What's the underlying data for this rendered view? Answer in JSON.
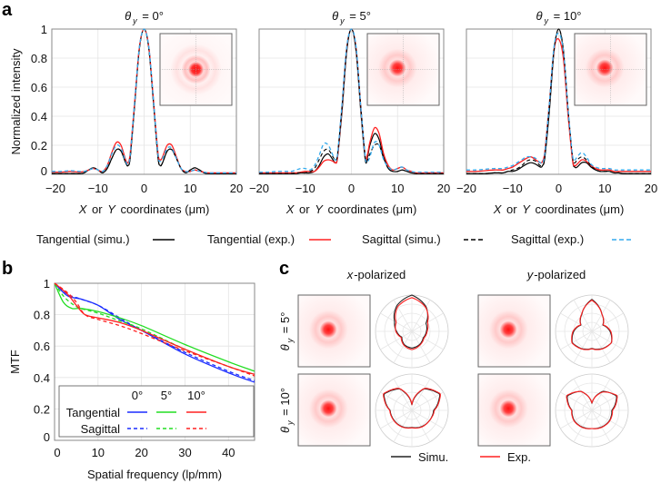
{
  "panel_labels": {
    "a": "a",
    "b": "b",
    "c": "c"
  },
  "chart_data": [
    {
      "type": "line",
      "panel": "a",
      "ylabel": "Normalized intensity",
      "xlabel_parts": [
        "X",
        " or ",
        "Y",
        " coordinates (μm)"
      ],
      "xlim": [
        -20,
        20
      ],
      "ylim": [
        0,
        1
      ],
      "xticks": [
        "−20",
        "−10",
        "0",
        "10",
        "20"
      ],
      "yticks": [
        "0",
        "0.2",
        "0.4",
        "0.6",
        "0.8",
        "1"
      ],
      "legend": [
        {
          "label": "Tangential (simu.)",
          "color": "#000000",
          "dash": false
        },
        {
          "label": "Tangential (exp.)",
          "color": "#ff2020",
          "dash": false
        },
        {
          "label": "Sagittal (simu.)",
          "color": "#000000",
          "dash": true
        },
        {
          "label": "Sagittal (exp.)",
          "color": "#33aaee",
          "dash": true
        }
      ],
      "x": [
        -20,
        -18,
        -16,
        -14,
        -13,
        -12,
        -11,
        -10,
        -9,
        -8,
        -7,
        -6,
        -5,
        -4,
        -3.5,
        -3,
        -2,
        -1,
        0,
        1,
        2,
        3,
        3.5,
        4,
        5,
        6,
        7,
        8,
        9,
        10,
        11,
        12,
        13,
        14,
        16,
        18,
        20
      ],
      "subplots": [
        {
          "title_sym": "θ",
          "title_sub": "y",
          "title_val": " = 0°",
          "series": [
            {
              "name": "Tangential (simu.)",
              "values": [
                0.005,
                0.005,
                0.005,
                0.005,
                0.01,
                0.03,
                0.045,
                0.03,
                0.01,
                0.04,
                0.11,
                0.17,
                0.16,
                0.08,
                0.06,
                0.12,
                0.5,
                0.87,
                1,
                0.87,
                0.5,
                0.12,
                0.06,
                0.08,
                0.16,
                0.17,
                0.11,
                0.04,
                0.01,
                0.03,
                0.045,
                0.03,
                0.01,
                0.005,
                0.005,
                0.005,
                0.005
              ]
            },
            {
              "name": "Tangential (exp.)",
              "values": [
                0.015,
                0.015,
                0.02,
                0.015,
                0.02,
                0.03,
                0.04,
                0.03,
                0.02,
                0.06,
                0.15,
                0.22,
                0.2,
                0.1,
                0.08,
                0.15,
                0.52,
                0.88,
                1,
                0.88,
                0.52,
                0.15,
                0.1,
                0.12,
                0.2,
                0.2,
                0.12,
                0.04,
                0.02,
                0.02,
                0.03,
                0.02,
                0.015,
                0.01,
                0.01,
                0.01,
                0.01
              ]
            },
            {
              "name": "Sagittal (simu.)",
              "values": [
                0.005,
                0.005,
                0.005,
                0.005,
                0.01,
                0.03,
                0.045,
                0.03,
                0.01,
                0.04,
                0.11,
                0.17,
                0.16,
                0.08,
                0.06,
                0.12,
                0.5,
                0.87,
                1,
                0.87,
                0.5,
                0.12,
                0.06,
                0.08,
                0.16,
                0.17,
                0.11,
                0.04,
                0.01,
                0.03,
                0.045,
                0.03,
                0.01,
                0.005,
                0.005,
                0.005,
                0.005
              ]
            },
            {
              "name": "Sagittal (exp.)",
              "values": [
                0.02,
                0.02,
                0.025,
                0.02,
                0.02,
                0.03,
                0.04,
                0.03,
                0.02,
                0.06,
                0.14,
                0.2,
                0.18,
                0.09,
                0.07,
                0.14,
                0.52,
                0.88,
                1,
                0.88,
                0.52,
                0.14,
                0.09,
                0.11,
                0.18,
                0.18,
                0.11,
                0.04,
                0.02,
                0.02,
                0.03,
                0.02,
                0.015,
                0.01,
                0.01,
                0.01,
                0.01
              ]
            }
          ]
        },
        {
          "title_sym": "θ",
          "title_sub": "y",
          "title_val": " = 5°",
          "series": [
            {
              "name": "Tangential (simu.)",
              "values": [
                0.005,
                0.005,
                0.005,
                0.005,
                0.005,
                0.005,
                0.01,
                0.01,
                0.01,
                0.02,
                0.06,
                0.12,
                0.14,
                0.1,
                0.08,
                0.12,
                0.45,
                0.85,
                1,
                0.85,
                0.45,
                0.1,
                0.12,
                0.2,
                0.28,
                0.24,
                0.12,
                0.04,
                0.02,
                0.02,
                0.03,
                0.02,
                0.01,
                0.005,
                0.005,
                0.005,
                0.005
              ]
            },
            {
              "name": "Tangential (exp.)",
              "values": [
                0.01,
                0.01,
                0.01,
                0.01,
                0.01,
                0.01,
                0.015,
                0.02,
                0.02,
                0.02,
                0.05,
                0.09,
                0.1,
                0.09,
                0.08,
                0.12,
                0.48,
                0.87,
                1,
                0.87,
                0.48,
                0.12,
                0.14,
                0.22,
                0.32,
                0.28,
                0.14,
                0.06,
                0.03,
                0.04,
                0.05,
                0.03,
                0.02,
                0.01,
                0.01,
                0.01,
                0.01
              ]
            },
            {
              "name": "Sagittal (simu.)",
              "values": [
                0.005,
                0.005,
                0.005,
                0.005,
                0.005,
                0.01,
                0.01,
                0.01,
                0.02,
                0.04,
                0.1,
                0.16,
                0.17,
                0.12,
                0.1,
                0.14,
                0.48,
                0.86,
                1,
                0.86,
                0.48,
                0.12,
                0.1,
                0.14,
                0.2,
                0.2,
                0.11,
                0.04,
                0.02,
                0.02,
                0.03,
                0.02,
                0.01,
                0.005,
                0.005,
                0.005,
                0.005
              ]
            },
            {
              "name": "Sagittal (exp.)",
              "values": [
                0.015,
                0.015,
                0.02,
                0.02,
                0.02,
                0.03,
                0.04,
                0.04,
                0.03,
                0.06,
                0.13,
                0.21,
                0.2,
                0.13,
                0.1,
                0.14,
                0.5,
                0.88,
                1,
                0.88,
                0.48,
                0.12,
                0.09,
                0.12,
                0.22,
                0.2,
                0.1,
                0.05,
                0.03,
                0.04,
                0.05,
                0.03,
                0.02,
                0.015,
                0.015,
                0.015,
                0.015
              ]
            }
          ]
        },
        {
          "title_sym": "θ",
          "title_sub": "y",
          "title_val": " = 10°",
          "series": [
            {
              "name": "Tangential (simu.)",
              "values": [
                0.005,
                0.005,
                0.005,
                0.01,
                0.01,
                0.01,
                0.02,
                0.02,
                0.03,
                0.05,
                0.07,
                0.08,
                0.07,
                0.05,
                0.06,
                0.12,
                0.45,
                0.85,
                1,
                0.85,
                0.45,
                0.1,
                0.05,
                0.05,
                0.08,
                0.08,
                0.05,
                0.03,
                0.02,
                0.02,
                0.02,
                0.01,
                0.01,
                0.005,
                0.005,
                0.005,
                0.005
              ]
            },
            {
              "name": "Tangential (exp.)",
              "values": [
                0.02,
                0.02,
                0.025,
                0.03,
                0.03,
                0.03,
                0.04,
                0.05,
                0.07,
                0.09,
                0.11,
                0.12,
                0.1,
                0.08,
                0.09,
                0.16,
                0.5,
                0.86,
                0.93,
                0.8,
                0.42,
                0.1,
                0.06,
                0.07,
                0.1,
                0.09,
                0.06,
                0.04,
                0.03,
                0.03,
                0.03,
                0.02,
                0.02,
                0.02,
                0.02,
                0.02,
                0.02
              ]
            },
            {
              "name": "Sagittal (simu.)",
              "values": [
                0.005,
                0.005,
                0.005,
                0.01,
                0.01,
                0.01,
                0.02,
                0.03,
                0.04,
                0.06,
                0.09,
                0.1,
                0.09,
                0.06,
                0.06,
                0.12,
                0.48,
                0.86,
                1,
                0.86,
                0.46,
                0.12,
                0.08,
                0.1,
                0.12,
                0.1,
                0.06,
                0.03,
                0.02,
                0.02,
                0.02,
                0.01,
                0.01,
                0.005,
                0.005,
                0.005,
                0.005
              ]
            },
            {
              "name": "Sagittal (exp.)",
              "values": [
                0.03,
                0.03,
                0.035,
                0.04,
                0.04,
                0.04,
                0.05,
                0.06,
                0.08,
                0.1,
                0.12,
                0.12,
                0.11,
                0.08,
                0.08,
                0.15,
                0.5,
                0.88,
                0.97,
                0.85,
                0.46,
                0.13,
                0.1,
                0.12,
                0.15,
                0.12,
                0.07,
                0.05,
                0.04,
                0.04,
                0.04,
                0.03,
                0.03,
                0.03,
                0.03,
                0.03,
                0.03
              ]
            }
          ]
        }
      ]
    },
    {
      "type": "line",
      "panel": "b",
      "xlabel": "Spatial frequency (lp/mm)",
      "ylabel": "MTF",
      "xlim": [
        0,
        46
      ],
      "ylim": [
        0,
        1
      ],
      "xticks": [
        "0",
        "10",
        "20",
        "30",
        "40"
      ],
      "yticks": [
        "0",
        "0.2",
        "0.4",
        "0.6",
        "0.8",
        "1"
      ],
      "legend_placement": "bottom-left",
      "legend_headers": [
        "0°",
        "5°",
        "10°"
      ],
      "legend_rows": [
        "Tangential",
        "Sagittal"
      ],
      "series": [
        {
          "name": "Tangential 0°",
          "color": "#1a2cff",
          "dash": false,
          "x": [
            0,
            3,
            6,
            10,
            15,
            20,
            30,
            40,
            46
          ],
          "values": [
            1,
            0.92,
            0.9,
            0.86,
            0.77,
            0.7,
            0.55,
            0.43,
            0.37
          ]
        },
        {
          "name": "Sagittal 0°",
          "color": "#1a2cff",
          "dash": true,
          "x": [
            0,
            3,
            6,
            10,
            15,
            20,
            30,
            40,
            46
          ],
          "values": [
            1,
            0.93,
            0.9,
            0.86,
            0.78,
            0.7,
            0.56,
            0.44,
            0.38
          ]
        },
        {
          "name": "Tangential 5°",
          "color": "#22dd22",
          "dash": false,
          "x": [
            0,
            2,
            4,
            6,
            10,
            15,
            20,
            30,
            40,
            46
          ],
          "values": [
            1,
            0.88,
            0.84,
            0.84,
            0.82,
            0.78,
            0.73,
            0.61,
            0.5,
            0.44
          ]
        },
        {
          "name": "Sagittal 5°",
          "color": "#22dd22",
          "dash": true,
          "x": [
            0,
            2,
            4,
            6,
            10,
            15,
            20,
            30,
            40,
            46
          ],
          "values": [
            1,
            0.92,
            0.87,
            0.84,
            0.81,
            0.76,
            0.71,
            0.58,
            0.47,
            0.42
          ]
        },
        {
          "name": "Tangential 10°",
          "color": "#ff2020",
          "dash": false,
          "x": [
            0,
            3,
            5,
            7,
            10,
            15,
            20,
            30,
            40,
            46
          ],
          "values": [
            1,
            0.93,
            0.86,
            0.8,
            0.78,
            0.75,
            0.7,
            0.58,
            0.47,
            0.42
          ]
        },
        {
          "name": "Sagittal 10°",
          "color": "#ff2020",
          "dash": true,
          "x": [
            0,
            3,
            5,
            7,
            10,
            15,
            20,
            30,
            40,
            46
          ],
          "values": [
            1,
            0.94,
            0.88,
            0.8,
            0.77,
            0.73,
            0.68,
            0.57,
            0.47,
            0.41
          ]
        }
      ]
    },
    {
      "type": "polar",
      "panel": "c",
      "columns": [
        {
          "prefix": "x",
          "suffix": "-polarized"
        },
        {
          "prefix": "y",
          "suffix": "-polarized"
        }
      ],
      "rows": [
        {
          "sym": "θ",
          "sub": "y",
          "val": " = 5°"
        },
        {
          "sym": "θ",
          "sub": "y",
          "val": " = 10°"
        }
      ],
      "legend": [
        {
          "label": "Simu.",
          "color": "#222222"
        },
        {
          "label": "Exp.",
          "color": "#ff2020"
        }
      ],
      "angles_deg": [
        0,
        30,
        60,
        90,
        120,
        150,
        180,
        210,
        240,
        270,
        300,
        330
      ],
      "plots": [
        {
          "row": 0,
          "col": 0,
          "simu": [
            1.0,
            0.78,
            0.45,
            0.4,
            0.36,
            0.42,
            0.46,
            0.42,
            0.32,
            0.42,
            0.55,
            0.82
          ],
          "exp": [
            0.93,
            0.76,
            0.5,
            0.42,
            0.38,
            0.44,
            0.5,
            0.44,
            0.34,
            0.44,
            0.5,
            0.78
          ]
        },
        {
          "row": 0,
          "col": 1,
          "simu": [
            0.88,
            0.55,
            0.35,
            0.5,
            0.62,
            0.55,
            0.47,
            0.55,
            0.62,
            0.5,
            0.35,
            0.55
          ],
          "exp": [
            0.86,
            0.55,
            0.36,
            0.52,
            0.62,
            0.56,
            0.48,
            0.56,
            0.63,
            0.52,
            0.36,
            0.56
          ]
        },
        {
          "row": 1,
          "col": 0,
          "simu": [
            0.15,
            0.68,
            0.88,
            0.6,
            0.56,
            0.52,
            0.47,
            0.52,
            0.56,
            0.6,
            0.88,
            0.68
          ],
          "exp": [
            0.17,
            0.7,
            0.9,
            0.62,
            0.56,
            0.53,
            0.48,
            0.53,
            0.57,
            0.61,
            0.9,
            0.7
          ]
        },
        {
          "row": 1,
          "col": 1,
          "simu": [
            0.2,
            0.6,
            0.78,
            0.55,
            0.56,
            0.53,
            0.5,
            0.53,
            0.56,
            0.55,
            0.78,
            0.6
          ],
          "exp": [
            0.21,
            0.58,
            0.8,
            0.57,
            0.57,
            0.54,
            0.5,
            0.54,
            0.57,
            0.56,
            0.8,
            0.6
          ]
        }
      ]
    }
  ]
}
